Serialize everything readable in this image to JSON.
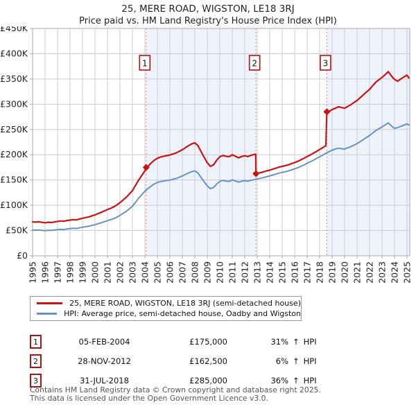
{
  "colors": {
    "price_red": "#cc1111",
    "marker_red": "#b01212",
    "hpi_blue": "#6593c5",
    "band_fill": "#edf2fb",
    "grid": "#cccccc",
    "plot_border": "#aaaaaa",
    "sale_dashed_line": "#e8837f"
  },
  "chart_data": {
    "type": "line",
    "title": "25, MERE ROAD, WIGSTON, LE18 3RJ",
    "subtitle": "Price paid vs. HM Land Registry's House Price Index (HPI)",
    "xlim": [
      1995,
      2025.22
    ],
    "ylim": [
      0,
      450000
    ],
    "grid": "on",
    "legend_position": "bottom",
    "y_ticks": [
      "£0",
      "£50K",
      "£100K",
      "£150K",
      "£200K",
      "£250K",
      "£300K",
      "£350K",
      "£400K",
      "£450K"
    ],
    "y_tick_step_k": 50,
    "x_ticks": [
      "1995",
      "1996",
      "1997",
      "1998",
      "1999",
      "2000",
      "2001",
      "2002",
      "2003",
      "2004",
      "2005",
      "2006",
      "2007",
      "2008",
      "2009",
      "2010",
      "2011",
      "2012",
      "2013",
      "2014",
      "2015",
      "2016",
      "2017",
      "2018",
      "2019",
      "2020",
      "2021",
      "2022",
      "2023",
      "2024",
      "2025"
    ],
    "bands": [
      {
        "from": 2004.1,
        "to": 2012.9
      },
      {
        "from": 2018.58,
        "to": 2025.22
      }
    ],
    "sales": [
      {
        "label": "1",
        "year": 2004.1,
        "price_k": 175
      },
      {
        "label": "2",
        "year": 2012.9,
        "price_k": 162.5
      },
      {
        "label": "3",
        "year": 2018.58,
        "price_k": 285
      }
    ],
    "series": [
      {
        "name": "hpi-average",
        "color": "#6593c5",
        "width": 2,
        "points": [
          [
            1995.0,
            51.0
          ],
          [
            1995.25,
            50.6
          ],
          [
            1995.5,
            51.2
          ],
          [
            1995.75,
            50.4
          ],
          [
            1996.0,
            49.8
          ],
          [
            1996.25,
            50.6
          ],
          [
            1996.5,
            50.2
          ],
          [
            1996.75,
            51.0
          ],
          [
            1997.0,
            51.8
          ],
          [
            1997.25,
            52.5
          ],
          [
            1997.5,
            52.0
          ],
          [
            1997.75,
            53.1
          ],
          [
            1998.0,
            53.7
          ],
          [
            1998.25,
            54.5
          ],
          [
            1998.5,
            54.0
          ],
          [
            1998.75,
            55.3
          ],
          [
            1999.0,
            56.5
          ],
          [
            1999.25,
            57.6
          ],
          [
            1999.5,
            58.5
          ],
          [
            1999.75,
            60.1
          ],
          [
            2000.0,
            61.6
          ],
          [
            2000.25,
            63.5
          ],
          [
            2000.5,
            65.4
          ],
          [
            2000.75,
            67.5
          ],
          [
            2001.0,
            69.6
          ],
          [
            2001.25,
            71.5
          ],
          [
            2001.5,
            73.6
          ],
          [
            2001.75,
            76.4
          ],
          [
            2002.0,
            80.0
          ],
          [
            2002.25,
            84.0
          ],
          [
            2002.5,
            88.0
          ],
          [
            2002.75,
            93.0
          ],
          [
            2003.0,
            98.1
          ],
          [
            2003.25,
            106.1
          ],
          [
            2003.5,
            114.1
          ],
          [
            2003.75,
            121.0
          ],
          [
            2004.0,
            128.0
          ],
          [
            2004.25,
            133.1
          ],
          [
            2004.5,
            138.0
          ],
          [
            2004.75,
            142.1
          ],
          [
            2005.0,
            145.1
          ],
          [
            2005.25,
            147.0
          ],
          [
            2005.5,
            148.1
          ],
          [
            2005.75,
            149.0
          ],
          [
            2006.0,
            150.0
          ],
          [
            2006.25,
            151.5
          ],
          [
            2006.5,
            153.0
          ],
          [
            2006.75,
            155.5
          ],
          [
            2007.0,
            158.0
          ],
          [
            2007.25,
            161.0
          ],
          [
            2007.5,
            164.0
          ],
          [
            2007.75,
            166.5
          ],
          [
            2008.0,
            168.0
          ],
          [
            2008.25,
            163.9
          ],
          [
            2008.5,
            155.0
          ],
          [
            2008.75,
            146.5
          ],
          [
            2009.0,
            138.2
          ],
          [
            2009.25,
            133.0
          ],
          [
            2009.5,
            135.2
          ],
          [
            2009.75,
            142.0
          ],
          [
            2010.0,
            147.2
          ],
          [
            2010.25,
            149.1
          ],
          [
            2010.5,
            148.0
          ],
          [
            2010.75,
            147.2
          ],
          [
            2011.0,
            150.2
          ],
          [
            2011.25,
            148.0
          ],
          [
            2011.5,
            145.8
          ],
          [
            2011.75,
            147.6
          ],
          [
            2012.0,
            148.7
          ],
          [
            2012.25,
            147.6
          ],
          [
            2012.5,
            149.5
          ],
          [
            2012.75,
            150.6
          ],
          [
            2013.0,
            152.0
          ],
          [
            2013.25,
            153.4
          ],
          [
            2013.5,
            154.7
          ],
          [
            2013.75,
            156.5
          ],
          [
            2014.0,
            158.0
          ],
          [
            2014.25,
            159.9
          ],
          [
            2014.5,
            161.7
          ],
          [
            2014.75,
            163.5
          ],
          [
            2015.0,
            165.0
          ],
          [
            2015.25,
            166.4
          ],
          [
            2015.5,
            167.9
          ],
          [
            2015.75,
            170.1
          ],
          [
            2016.0,
            172.0
          ],
          [
            2016.25,
            174.4
          ],
          [
            2016.5,
            177.1
          ],
          [
            2016.75,
            180.0
          ],
          [
            2017.0,
            183.2
          ],
          [
            2017.25,
            186.0
          ],
          [
            2017.5,
            189.2
          ],
          [
            2017.75,
            192.6
          ],
          [
            2018.0,
            196.0
          ],
          [
            2018.25,
            199.4
          ],
          [
            2018.5,
            203.0
          ],
          [
            2018.75,
            206.1
          ],
          [
            2019.0,
            209.0
          ],
          [
            2019.25,
            211.1
          ],
          [
            2019.5,
            213.0
          ],
          [
            2019.75,
            212.0
          ],
          [
            2020.0,
            211.1
          ],
          [
            2020.25,
            213.6
          ],
          [
            2020.5,
            216.0
          ],
          [
            2020.75,
            219.0
          ],
          [
            2021.0,
            222.1
          ],
          [
            2021.25,
            226.0
          ],
          [
            2021.5,
            230.1
          ],
          [
            2021.75,
            234.0
          ],
          [
            2022.0,
            238.1
          ],
          [
            2022.25,
            243.0
          ],
          [
            2022.5,
            248.1
          ],
          [
            2022.75,
            251.5
          ],
          [
            2023.0,
            255.0
          ],
          [
            2023.25,
            259.0
          ],
          [
            2023.5,
            263.1
          ],
          [
            2023.75,
            257.0
          ],
          [
            2024.0,
            252.1
          ],
          [
            2024.25,
            254.0
          ],
          [
            2024.5,
            256.1
          ],
          [
            2024.75,
            258.5
          ],
          [
            2025.0,
            261.0
          ],
          [
            2025.15,
            259.0
          ]
        ]
      },
      {
        "name": "price-paid",
        "color": "#cc1111",
        "width": 2.2,
        "points": [
          [
            1995.0,
            67.2
          ],
          [
            1995.25,
            66.5
          ],
          [
            1995.5,
            67.3
          ],
          [
            1995.75,
            66.2
          ],
          [
            1996.0,
            65.3
          ],
          [
            1996.25,
            66.4
          ],
          [
            1996.5,
            65.8
          ],
          [
            1996.75,
            67.0
          ],
          [
            1997.0,
            68.1
          ],
          [
            1997.25,
            69.0
          ],
          [
            1997.5,
            68.3
          ],
          [
            1997.75,
            69.8
          ],
          [
            1998.0,
            70.6
          ],
          [
            1998.25,
            71.6
          ],
          [
            1998.5,
            70.9
          ],
          [
            1998.75,
            72.7
          ],
          [
            1999.0,
            74.2
          ],
          [
            1999.25,
            75.7
          ],
          [
            1999.5,
            76.9
          ],
          [
            1999.75,
            79.0
          ],
          [
            2000.0,
            81.0
          ],
          [
            2000.25,
            83.5
          ],
          [
            2000.5,
            86.0
          ],
          [
            2000.75,
            88.8
          ],
          [
            2001.0,
            91.5
          ],
          [
            2001.25,
            94.0
          ],
          [
            2001.5,
            96.8
          ],
          [
            2001.75,
            100.5
          ],
          [
            2002.0,
            105.2
          ],
          [
            2002.25,
            110.4
          ],
          [
            2002.5,
            115.7
          ],
          [
            2002.75,
            122.3
          ],
          [
            2003.0,
            129.0
          ],
          [
            2003.25,
            139.5
          ],
          [
            2003.5,
            150.0
          ],
          [
            2003.75,
            159.0
          ],
          [
            2004.0,
            168.2
          ],
          [
            2004.1,
            175.0
          ],
          [
            2004.25,
            177.0
          ],
          [
            2004.5,
            183.5
          ],
          [
            2004.75,
            189.0
          ],
          [
            2005.0,
            193.0
          ],
          [
            2005.25,
            195.5
          ],
          [
            2005.5,
            197.0
          ],
          [
            2005.75,
            198.2
          ],
          [
            2006.0,
            199.5
          ],
          [
            2006.25,
            201.5
          ],
          [
            2006.5,
            203.5
          ],
          [
            2006.75,
            206.8
          ],
          [
            2007.0,
            210.0
          ],
          [
            2007.25,
            214.0
          ],
          [
            2007.5,
            218.0
          ],
          [
            2007.75,
            221.5
          ],
          [
            2008.0,
            223.5
          ],
          [
            2008.25,
            218.0
          ],
          [
            2008.5,
            206.0
          ],
          [
            2008.75,
            195.0
          ],
          [
            2009.0,
            184.0
          ],
          [
            2009.25,
            177.0
          ],
          [
            2009.5,
            180.0
          ],
          [
            2009.75,
            189.0
          ],
          [
            2010.0,
            196.0
          ],
          [
            2010.25,
            198.5
          ],
          [
            2010.5,
            197.0
          ],
          [
            2010.75,
            196.0
          ],
          [
            2011.0,
            200.0
          ],
          [
            2011.25,
            197.0
          ],
          [
            2011.5,
            194.0
          ],
          [
            2011.75,
            196.5
          ],
          [
            2012.0,
            198.0
          ],
          [
            2012.25,
            196.5
          ],
          [
            2012.5,
            199.0
          ],
          [
            2012.75,
            200.5
          ],
          [
            2012.88,
            201.0
          ],
          [
            2012.9,
            162.5
          ],
          [
            2013.0,
            163.0
          ],
          [
            2013.25,
            164.5
          ],
          [
            2013.5,
            166.0
          ],
          [
            2013.75,
            168.0
          ],
          [
            2014.0,
            169.5
          ],
          [
            2014.25,
            171.5
          ],
          [
            2014.5,
            173.5
          ],
          [
            2014.75,
            175.5
          ],
          [
            2015.0,
            177.0
          ],
          [
            2015.25,
            178.5
          ],
          [
            2015.5,
            180.0
          ],
          [
            2015.75,
            182.5
          ],
          [
            2016.0,
            184.5
          ],
          [
            2016.25,
            187.0
          ],
          [
            2016.5,
            190.0
          ],
          [
            2016.75,
            193.0
          ],
          [
            2017.0,
            196.5
          ],
          [
            2017.25,
            199.5
          ],
          [
            2017.5,
            203.0
          ],
          [
            2017.75,
            206.5
          ],
          [
            2018.0,
            210.5
          ],
          [
            2018.25,
            214.0
          ],
          [
            2018.5,
            218.0
          ],
          [
            2018.58,
            285.0
          ],
          [
            2018.75,
            285.5
          ],
          [
            2019.0,
            289.5
          ],
          [
            2019.25,
            292.0
          ],
          [
            2019.5,
            295.0
          ],
          [
            2019.75,
            293.5
          ],
          [
            2020.0,
            292.0
          ],
          [
            2020.25,
            295.5
          ],
          [
            2020.5,
            299.0
          ],
          [
            2020.75,
            303.5
          ],
          [
            2021.0,
            307.5
          ],
          [
            2021.25,
            313.0
          ],
          [
            2021.5,
            318.5
          ],
          [
            2021.75,
            324.0
          ],
          [
            2022.0,
            329.5
          ],
          [
            2022.25,
            336.5
          ],
          [
            2022.5,
            343.5
          ],
          [
            2022.75,
            348.5
          ],
          [
            2023.0,
            353.0
          ],
          [
            2023.25,
            358.5
          ],
          [
            2023.5,
            364.5
          ],
          [
            2023.75,
            356.0
          ],
          [
            2024.0,
            349.0
          ],
          [
            2024.25,
            345.5
          ],
          [
            2024.5,
            350.0
          ],
          [
            2024.75,
            354.0
          ],
          [
            2025.0,
            357.5
          ],
          [
            2025.15,
            352.0
          ]
        ]
      }
    ]
  },
  "legend": {
    "items": [
      {
        "label": "25, MERE ROAD, WIGSTON, LE18 3RJ (semi-detached house)",
        "color": "#cc1111"
      },
      {
        "label": "HPI: Average price, semi-detached house, Oadby and Wigston",
        "color": "#6593c5"
      }
    ]
  },
  "transactions": [
    {
      "num": "1",
      "date": "05-FEB-2004",
      "price": "£175,000",
      "pct": "31%",
      "arrow": "↑",
      "ref": "HPI"
    },
    {
      "num": "2",
      "date": "28-NOV-2012",
      "price": "£162,500",
      "pct": "6%",
      "arrow": "↑",
      "ref": "HPI"
    },
    {
      "num": "3",
      "date": "31-JUL-2018",
      "price": "£285,000",
      "pct": "36%",
      "arrow": "↑",
      "ref": "HPI"
    }
  ],
  "footer": {
    "line1": "Contains HM Land Registry data © Crown copyright and database right 2025.",
    "line2": "This data is licensed under the Open Government Licence v3.0."
  }
}
